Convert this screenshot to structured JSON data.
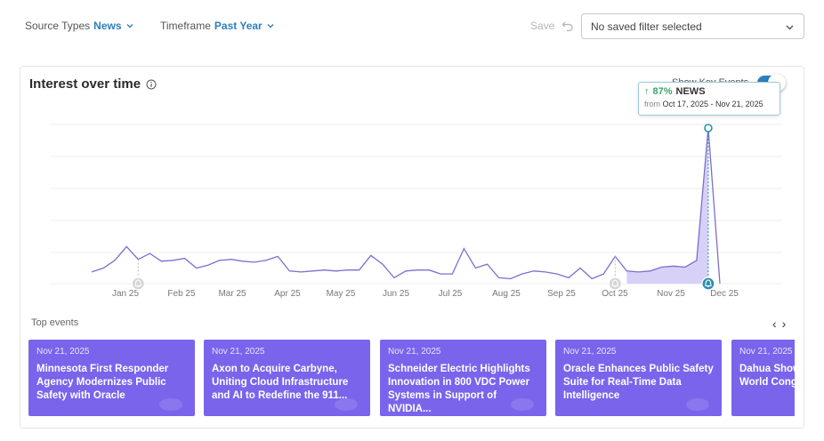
{
  "filters": {
    "source_label": "Source Types",
    "source_value": "News",
    "timeframe_label": "Timeframe",
    "timeframe_value": "Past Year",
    "save_label": "Save",
    "saved_filter_placeholder": "No saved filter selected"
  },
  "card": {
    "title": "Interest over time",
    "key_events_label": "Show Key Events",
    "key_events_on": true
  },
  "tooltip": {
    "arrow": "↑",
    "percent": "87%",
    "label": "NEWS",
    "from_label": "from",
    "range": "Oct 17, 2025 - Nov 21, 2025"
  },
  "chart_data": {
    "type": "line",
    "series": [
      {
        "values": [
          12,
          16,
          24,
          38,
          25,
          31,
          23,
          24,
          26,
          16,
          19,
          24,
          25,
          23,
          22,
          24,
          28,
          13,
          12,
          13,
          14,
          13,
          14,
          14,
          29,
          20,
          6,
          13,
          14,
          14,
          10,
          10,
          36,
          16,
          20,
          6,
          5,
          10,
          13,
          12,
          10,
          6,
          16,
          5,
          10,
          28,
          13,
          12,
          13,
          17,
          18,
          17,
          24,
          160,
          0
        ]
      }
    ],
    "highlight_range_start_index": 46,
    "highlight_range_end_index": 53,
    "key_event_indices": [
      4,
      45,
      53
    ],
    "xtick_labels": [
      "Jan 25",
      "Feb 25",
      "Mar 25",
      "Apr 25",
      "May 25",
      "Jun 25",
      "Jul 25",
      "Aug 25",
      "Sep 25",
      "Oct 25",
      "Nov 25",
      "Dec 25"
    ],
    "colors": {
      "line": "#7b6fcf",
      "fill": "#c9c1f5",
      "grid": "#ececec",
      "marker": "#2f8fb0"
    },
    "grid": true
  },
  "events": {
    "heading": "Top events",
    "prev": "‹",
    "next": "›",
    "items": [
      {
        "date": "Nov 21, 2025",
        "title": "Minnesota First Responder Agency Modernizes Public Safety with Oracle"
      },
      {
        "date": "Nov 21, 2025",
        "title": "Axon to Acquire Carbyne, Uniting Cloud Infrastructure and AI to Redefine the 911..."
      },
      {
        "date": "Nov 21, 2025",
        "title": "Schneider Electric Highlights Innovation in 800 VDC Power Systems in Support of NVIDIA..."
      },
      {
        "date": "Nov 21, 2025",
        "title": "Oracle Enhances Public Safety Suite for Real-Time Data Intelligence"
      },
      {
        "date": "Nov 21, 2025",
        "title": "Dahua Shows Solutions at World Cong"
      }
    ]
  }
}
